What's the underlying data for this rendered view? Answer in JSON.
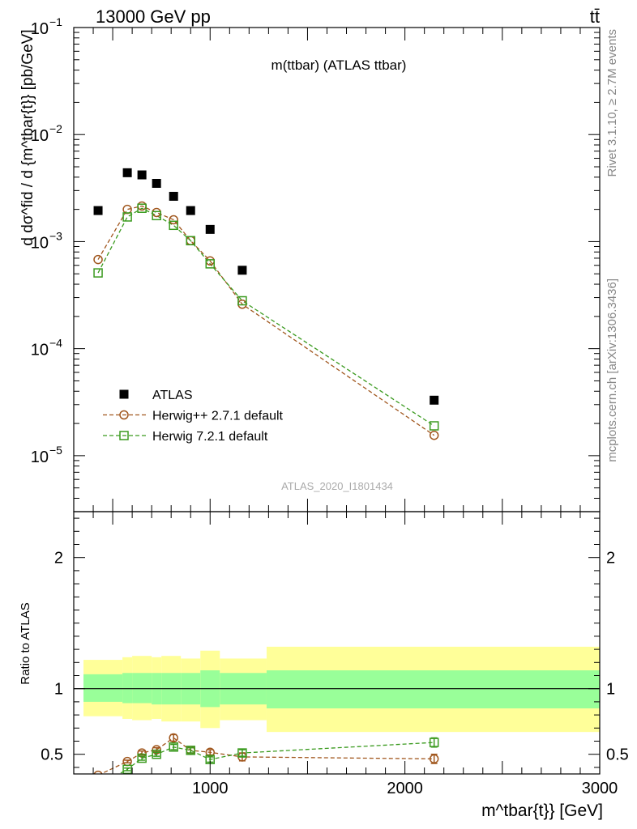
{
  "header": {
    "left": "13000 GeV pp",
    "right": "tt̄"
  },
  "side_labels": {
    "rivet": "Rivet 3.1.10, ≥ 2.7M events",
    "mcplots": "mcplots.cern.ch [arXiv:1306.3436]"
  },
  "analysis_id": "ATLAS_2020_I1801434",
  "chart_data": [
    {
      "type": "scatter",
      "title": "m(ttbar) (ATLAS ttbar)",
      "ylabel": "d dσ^fid / d {m^tbar{t}} [pb/GeV]",
      "yscale": "log",
      "ylim": [
        3e-06,
        0.1
      ],
      "xlim": [
        300,
        3000
      ],
      "yticks": [
        {
          "value": 1e-05,
          "base": "10",
          "exp": "−5"
        },
        {
          "value": 0.0001,
          "base": "10",
          "exp": "−4"
        },
        {
          "value": 0.001,
          "base": "10",
          "exp": "−3"
        },
        {
          "value": 0.01,
          "base": "10",
          "exp": "−2"
        },
        {
          "value": 0.1,
          "base": "10",
          "exp": "−1"
        }
      ],
      "legend": {
        "position": "bottom-left"
      },
      "series": [
        {
          "name": "ATLAS",
          "color": "#000000",
          "marker": "filled-square",
          "x": [
            425,
            575,
            650,
            725,
            812.5,
            900,
            1000,
            1165,
            2150
          ],
          "y": [
            0.00195,
            0.0044,
            0.0042,
            0.0035,
            0.00265,
            0.00195,
            0.0013,
            0.00054,
            3.3e-05
          ]
        },
        {
          "name": "Herwig++ 2.7.1 default",
          "color": "#a0561d",
          "marker": "open-circle",
          "line": "dashed",
          "x": [
            425,
            575,
            650,
            725,
            812.5,
            900,
            1000,
            1165,
            2150
          ],
          "y": [
            0.00068,
            0.002,
            0.00215,
            0.00187,
            0.0016,
            0.00102,
            0.00066,
            0.00026,
            1.55e-05
          ]
        },
        {
          "name": "Herwig 7.2.1 default",
          "color": "#3a9a1e",
          "marker": "open-square",
          "line": "dashed",
          "x": [
            425,
            575,
            650,
            725,
            812.5,
            900,
            1000,
            1165,
            2150
          ],
          "y": [
            0.00051,
            0.0017,
            0.00205,
            0.00175,
            0.00142,
            0.00102,
            0.00062,
            0.00028,
            1.9e-05
          ]
        }
      ]
    },
    {
      "type": "scatter",
      "ylabel": "Ratio to ATLAS",
      "xlabel": "m^tbar{t}} [GeV]",
      "ylim": [
        0.35,
        2.35
      ],
      "xlim": [
        300,
        3000
      ],
      "yticks": [
        0.5,
        1,
        2
      ],
      "xticks": [
        1000,
        2000,
        3000
      ],
      "bands": {
        "bins": [
          [
            350,
            550
          ],
          [
            550,
            600
          ],
          [
            600,
            700
          ],
          [
            700,
            750
          ],
          [
            750,
            850
          ],
          [
            850,
            950
          ],
          [
            950,
            1050
          ],
          [
            1050,
            1290
          ],
          [
            1290,
            3000
          ]
        ],
        "yellow": [
          [
            0.79,
            1.22
          ],
          [
            0.77,
            1.24
          ],
          [
            0.76,
            1.25
          ],
          [
            0.77,
            1.24
          ],
          [
            0.75,
            1.25
          ],
          [
            0.75,
            1.23
          ],
          [
            0.7,
            1.29
          ],
          [
            0.76,
            1.23
          ],
          [
            0.67,
            1.32
          ]
        ],
        "green": [
          [
            0.9,
            1.11
          ],
          [
            0.89,
            1.12
          ],
          [
            0.89,
            1.12
          ],
          [
            0.88,
            1.12
          ],
          [
            0.88,
            1.12
          ],
          [
            0.88,
            1.12
          ],
          [
            0.86,
            1.14
          ],
          [
            0.88,
            1.12
          ],
          [
            0.85,
            1.14
          ]
        ]
      },
      "series": [
        {
          "name": "Herwig++ 2.7.1 default",
          "color": "#a0561d",
          "marker": "open-circle",
          "x": [
            425,
            575,
            650,
            725,
            812.5,
            900,
            1000,
            1165,
            2150
          ],
          "y": [
            0.34,
            0.445,
            0.51,
            0.535,
            0.625,
            0.53,
            0.515,
            0.48,
            0.465
          ],
          "err": [
            0,
            0.01,
            0.015,
            0.015,
            0.025,
            0.02,
            0.02,
            0.03,
            0.035
          ]
        },
        {
          "name": "Herwig 7.2.1 default",
          "color": "#3a9a1e",
          "marker": "open-square",
          "x": [
            425,
            575,
            650,
            725,
            812.5,
            900,
            1000,
            1165,
            2150
          ],
          "y": [
            0.26,
            0.385,
            0.47,
            0.5,
            0.555,
            0.53,
            0.46,
            0.51,
            0.59
          ],
          "err": [
            0,
            0.01,
            0.015,
            0.015,
            0.02,
            0.02,
            0.02,
            0.025,
            0.035
          ]
        }
      ]
    }
  ]
}
